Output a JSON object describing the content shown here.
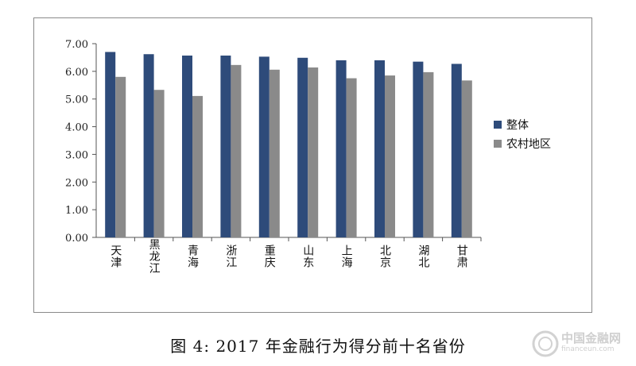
{
  "chart_data": {
    "type": "bar",
    "categories": [
      "天津",
      "黑龙江",
      "青海",
      "浙江",
      "重庆",
      "山东",
      "上海",
      "北京",
      "湖北",
      "甘肃"
    ],
    "series": [
      {
        "name": "整体",
        "values": [
          6.7,
          6.62,
          6.57,
          6.57,
          6.53,
          6.49,
          6.4,
          6.4,
          6.35,
          6.27
        ],
        "color": "#2e4b7a"
      },
      {
        "name": "农村地区",
        "values": [
          5.8,
          5.33,
          5.11,
          6.23,
          6.06,
          6.14,
          5.75,
          5.85,
          5.97,
          5.67
        ],
        "color": "#8a8a8a"
      }
    ],
    "yticks": [
      "0.00",
      "1.00",
      "2.00",
      "3.00",
      "4.00",
      "5.00",
      "6.00",
      "7.00"
    ],
    "ylim": [
      0,
      7
    ],
    "legend_position": "right",
    "grid": false
  },
  "caption": "图 4: 2017 年金融行为得分前十名省份",
  "watermark": {
    "text": "中国金融网",
    "subtext": "financeun.com"
  }
}
